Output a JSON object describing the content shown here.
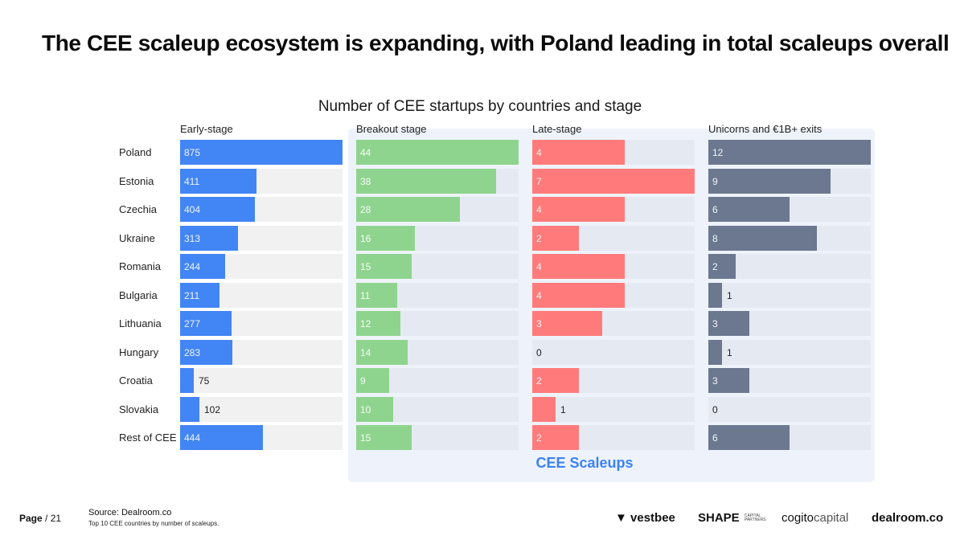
{
  "page": {
    "title": "The CEE scaleup ecosystem is expanding, with Poland leading in total scaleups overall",
    "page_label": "Page",
    "page_number": "/ 21",
    "source": "Source:  Dealroom.co",
    "note": "Top 10 CEE countries by number of scaleups.",
    "highlight_label": "CEE Scaleups",
    "logos": {
      "vestbee": "vestbee",
      "shape_main": "SHAPE",
      "shape_sub_1": "CAPITAL",
      "shape_sub_2": "PARTNERS",
      "cogito_1": "cogito",
      "cogito_2": "capital",
      "dealroom": "dealroom.co"
    }
  },
  "chart_data": {
    "type": "bar",
    "orientation": "horizontal",
    "title": "Number of CEE startups by countries and stage",
    "categories": [
      "Poland",
      "Estonia",
      "Czechia",
      "Ukraine",
      "Romania",
      "Bulgaria",
      "Lithuania",
      "Hungary",
      "Croatia",
      "Slovakia",
      "Rest of CEE"
    ],
    "series": [
      {
        "name": "Early-stage",
        "color": "#4285f4",
        "track": "#f1f1f1",
        "max": 875,
        "values": [
          875,
          411,
          404,
          313,
          244,
          211,
          277,
          283,
          75,
          102,
          444
        ]
      },
      {
        "name": "Breakout stage",
        "color": "#8ed48e",
        "track": "#e4e9f2",
        "max": 44,
        "values": [
          44,
          38,
          28,
          16,
          15,
          11,
          12,
          14,
          9,
          10,
          15
        ]
      },
      {
        "name": "Late-stage",
        "color": "#ff7b7b",
        "track": "#e4e9f2",
        "max": 7,
        "values": [
          4,
          7,
          4,
          2,
          4,
          4,
          3,
          0,
          2,
          1,
          2
        ]
      },
      {
        "name": "Unicorns and €1B+ exits",
        "color": "#6c7890",
        "track": "#e4e9f2",
        "max": 12,
        "values": [
          12,
          9,
          6,
          8,
          2,
          1,
          3,
          1,
          3,
          0,
          6
        ]
      }
    ],
    "highlight": {
      "label": "CEE Scaleups",
      "covers_series": [
        "Breakout stage",
        "Late-stage",
        "Unicorns and €1B+ exits"
      ]
    }
  }
}
